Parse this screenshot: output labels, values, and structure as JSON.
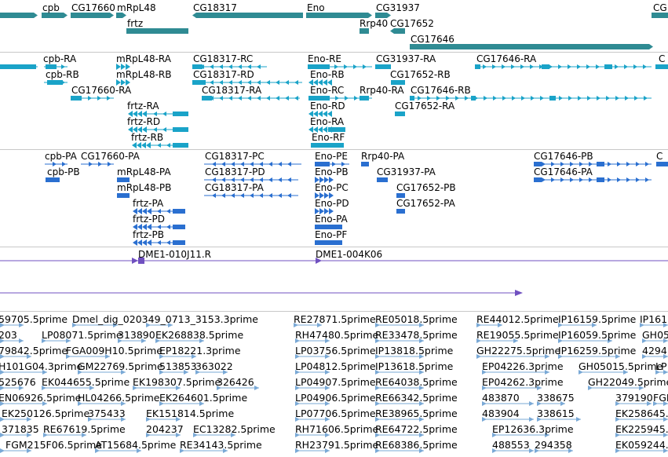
{
  "colors": {
    "gene": "#2f8b93",
    "transcript_a": "#1aa3c8",
    "transcript_b": "#2a6fd0",
    "clone": "#7050c0",
    "est": "#7aa9d6",
    "separator": "#c8c8c8"
  },
  "tracks": {
    "genes": {
      "labels": [
        "cpb",
        "CG17660",
        "mRpL48",
        "CG18317",
        "Eno",
        "CG31937",
        "CG",
        "frtz",
        "Rrp40",
        "CG17652",
        "CG17646"
      ]
    },
    "transcripts_a": {
      "labels": [
        "cpb-RA",
        "mRpL48-RA",
        "CG18317-RC",
        "Eno-RE",
        "CG31937-RA",
        "CG17646-RA",
        "C",
        "cpb-RB",
        "mRpL48-RB",
        "CG18317-RD",
        "Eno-RB",
        "CG17652-RB",
        "CG17660-RA",
        "CG18317-RA",
        "Eno-RC",
        "Rrp40-RA",
        "CG17646-RB",
        "frtz-RA",
        "Eno-RD",
        "CG17652-RA",
        "frtz-RD",
        "Eno-RA",
        "frtz-RB",
        "Eno-RF"
      ]
    },
    "transcripts_b": {
      "labels": [
        "cpb-PA",
        "CG17660-PA",
        "CG18317-PC",
        "Eno-PE",
        "Rrp40-PA",
        "CG17646-PB",
        "C",
        "cpb-PB",
        "mRpL48-PA",
        "CG18317-PD",
        "Eno-PB",
        "CG31937-PA",
        "CG17646-PA",
        "mRpL48-PB",
        "CG18317-PA",
        "Eno-PC",
        "CG17652-PB",
        "frtz-PA",
        "Eno-PD",
        "CG17652-PA",
        "frtz-PD",
        "Eno-PA",
        "frtz-PB",
        "Eno-PF"
      ]
    },
    "clones": {
      "labels": [
        "DME1-010J11.R",
        "DME1-004K06"
      ]
    },
    "ests": {
      "labels": [
        "59705.5prime",
        "Dmel_dig_020349_0713_3153.3prime",
        "RE27871.5prime",
        "RE05018.5prime",
        "RE44012.5prime",
        "IP16159.5prime",
        "IP1615",
        "203",
        "LP08071.5prime",
        "313890",
        "EK268838.5prime",
        "RH47480.5prime",
        "RE33478.5prime",
        "RE19055.5prime",
        "IP16059.5prime",
        "GH05",
        "79842.5prime",
        "FGA009H10.5prime",
        "EP18221.3prime",
        "LP03756.5prime",
        "IP13818.5prime",
        "GH22275.5prime",
        "IP16259.5prime",
        "4294",
        "H101G04.3prime",
        "GM22769.5prime",
        "513853",
        "363022",
        "LP04812.5prime",
        "IP13618.5prime",
        "EP04226.3prime",
        "GH05015.5prime",
        "LP",
        "525676",
        "EK044655.5prime",
        "EK198307.5prime",
        "326426",
        "LP04907.5prime",
        "RE64038.5prime",
        "EP04262.3prime",
        "GH22049.5prime",
        "EN06926.5prime",
        "HL04266.5prime",
        "EK264601.5prime",
        "LP04906.5prime",
        "RE66342.5prime",
        "483870",
        "338675",
        "379190",
        "FGH",
        "EK250126.5prime",
        "375433",
        "EK151814.5prime",
        "LP07706.5prime",
        "RE38965.5prime",
        "483904",
        "338615",
        "EK258645.",
        "371835",
        "RE67619.5prime",
        "204237",
        "EC13282.5prime",
        "RH71606.5prime",
        "RE64722.5prime",
        "EP12636.3prime",
        "EK225945.",
        "FGM215F06.5prime",
        "AT15684.5prime",
        "RE34143.5prime",
        "RH23791.5prime",
        "RE68386.5prime",
        "488553",
        "294358",
        "EK059244."
      ]
    }
  }
}
